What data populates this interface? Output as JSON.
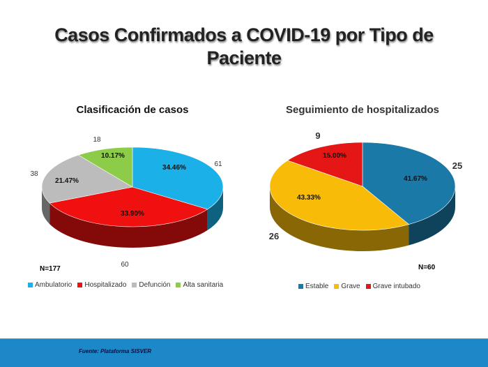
{
  "page": {
    "title": "Casos Confirmados a COVID-19 por Tipo de Paciente",
    "footer": "Fuente: Plataforma  SISVER"
  },
  "chart_data": [
    {
      "type": "pie",
      "title": "Clasificación  de casos",
      "n_label": "N=177",
      "legend_placement": "bottom",
      "slices": [
        {
          "name": "Ambulatorio",
          "value": 61,
          "percent": "34.46%",
          "color": "#1cb0e8"
        },
        {
          "name": "Hospitalizado",
          "value": 60,
          "percent": "33.90%",
          "color": "#f01010"
        },
        {
          "name": "Defunción",
          "value": 38,
          "percent": "21.47%",
          "color": "#bcbcbc"
        },
        {
          "name": "Alta sanitaria",
          "value": 18,
          "percent": "10.17%",
          "color": "#8ccc48"
        }
      ]
    },
    {
      "type": "pie",
      "title": "Seguimiento de hospitalizados",
      "n_label": "N=60",
      "legend_placement": "bottom",
      "slices": [
        {
          "name": "Estable",
          "value": 25,
          "percent": "41.67%",
          "color": "#1b79a8"
        },
        {
          "name": "Grave",
          "value": 26,
          "percent": "43.33%",
          "color": "#f8bc08"
        },
        {
          "name": "Grave intubado",
          "value": 9,
          "percent": "15.00%",
          "color": "#e41616"
        }
      ]
    }
  ]
}
